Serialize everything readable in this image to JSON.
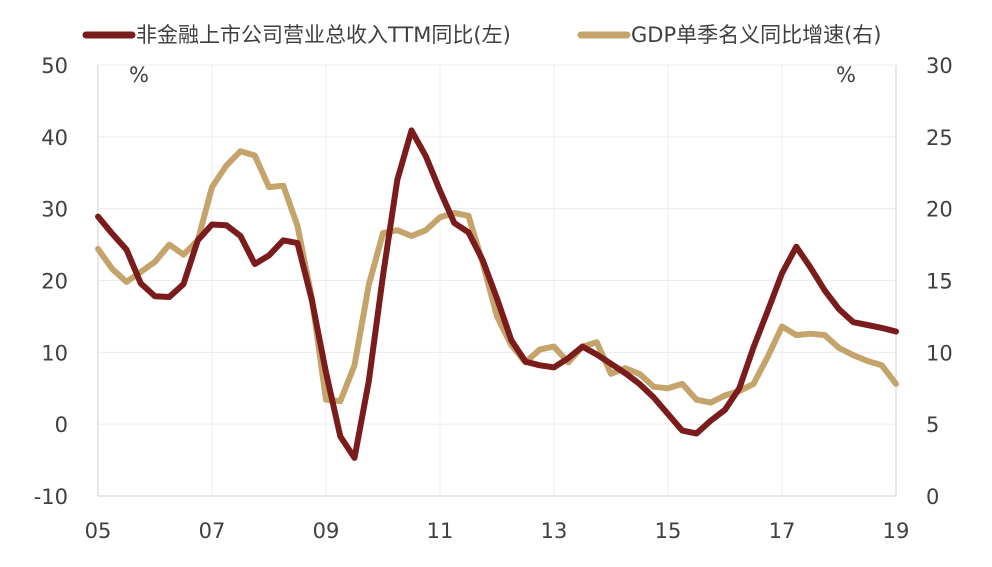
{
  "chart_data": {
    "type": "line",
    "title": "",
    "legend": {
      "placement": "top",
      "entries": [
        {
          "label": "非金融上市公司营业总收入TTM同比(左)",
          "color": "#7b1c1c"
        },
        {
          "label": "GDP单季名义同比增速(右)",
          "color": "#c4a46a"
        }
      ]
    },
    "x_axis": {
      "ticks": [
        "05",
        "07",
        "09",
        "11",
        "13",
        "15",
        "17",
        "19"
      ],
      "tick_values": [
        2005,
        2007,
        2009,
        2011,
        2013,
        2015,
        2017,
        2019
      ],
      "range": [
        2005,
        2019
      ]
    },
    "y_left": {
      "unit": "%",
      "range": [
        -10,
        50
      ],
      "ticks": [
        "50",
        "40",
        "30",
        "20",
        "10",
        "0",
        "-10"
      ],
      "tick_values": [
        50,
        40,
        30,
        20,
        10,
        0,
        -10
      ]
    },
    "y_right": {
      "unit": "%",
      "range": [
        0,
        30
      ],
      "ticks": [
        "30",
        "25",
        "20",
        "15",
        "10",
        "5",
        "0"
      ],
      "tick_values": [
        30,
        25,
        20,
        15,
        10,
        5,
        0
      ]
    },
    "grid": {
      "vertical": true,
      "horizontal": true
    },
    "series": [
      {
        "name": "非金融上市公司营业总收入TTM同比(左)",
        "axis": "left",
        "color": "#7b1c1c",
        "x": [
          2005.0,
          2005.25,
          2005.5,
          2005.75,
          2006.0,
          2006.25,
          2006.5,
          2006.75,
          2007.0,
          2007.25,
          2007.5,
          2007.75,
          2008.0,
          2008.25,
          2008.5,
          2008.75,
          2009.0,
          2009.25,
          2009.5,
          2009.75,
          2010.0,
          2010.25,
          2010.5,
          2010.75,
          2011.0,
          2011.25,
          2011.5,
          2011.75,
          2012.0,
          2012.25,
          2012.5,
          2012.75,
          2013.0,
          2013.25,
          2013.5,
          2013.75,
          2014.0,
          2014.25,
          2014.5,
          2014.75,
          2015.0,
          2015.25,
          2015.5,
          2015.75,
          2016.0,
          2016.25,
          2016.5,
          2016.75,
          2017.0,
          2017.25,
          2017.5,
          2017.75,
          2018.0,
          2018.25,
          2018.5,
          2018.75,
          2019.0
        ],
        "y": [
          28.9,
          26.5,
          24.3,
          19.6,
          17.8,
          17.7,
          19.5,
          25.6,
          27.8,
          27.7,
          26.2,
          22.3,
          23.5,
          25.6,
          25.2,
          17.3,
          7.2,
          -1.7,
          -4.7,
          6.0,
          20.7,
          34.0,
          40.9,
          37.3,
          32.5,
          28.0,
          26.7,
          22.8,
          17.5,
          11.7,
          8.7,
          8.2,
          7.9,
          9.2,
          10.8,
          9.7,
          8.4,
          7.1,
          5.6,
          3.7,
          1.4,
          -0.9,
          -1.3,
          0.5,
          2.0,
          5.0,
          10.7,
          15.8,
          21.0,
          24.7,
          21.8,
          18.6,
          16.0,
          14.2,
          13.8,
          13.4,
          12.9
        ]
      },
      {
        "name": "GDP单季名义同比增速(右)",
        "axis": "right",
        "color": "#c4a46a",
        "x": [
          2005.0,
          2005.25,
          2005.5,
          2005.75,
          2006.0,
          2006.25,
          2006.5,
          2006.75,
          2007.0,
          2007.25,
          2007.5,
          2007.75,
          2008.0,
          2008.25,
          2008.5,
          2008.75,
          2009.0,
          2009.25,
          2009.5,
          2009.75,
          2010.0,
          2010.25,
          2010.5,
          2010.75,
          2011.0,
          2011.25,
          2011.5,
          2011.75,
          2012.0,
          2012.25,
          2012.5,
          2012.75,
          2013.0,
          2013.25,
          2013.5,
          2013.75,
          2014.0,
          2014.25,
          2014.5,
          2014.75,
          2015.0,
          2015.25,
          2015.5,
          2015.75,
          2016.0,
          2016.25,
          2016.5,
          2016.75,
          2017.0,
          2017.25,
          2017.5,
          2017.75,
          2018.0,
          2018.25,
          2018.5,
          2018.75,
          2019.0
        ],
        "y": [
          17.2,
          15.8,
          14.9,
          15.6,
          16.3,
          17.5,
          16.8,
          17.8,
          21.5,
          23.0,
          24.0,
          23.7,
          21.5,
          21.6,
          18.8,
          13.8,
          6.7,
          6.6,
          9.1,
          14.7,
          18.3,
          18.5,
          18.1,
          18.5,
          19.4,
          19.7,
          19.5,
          16.2,
          12.5,
          10.5,
          9.3,
          10.2,
          10.4,
          9.3,
          10.4,
          10.7,
          8.5,
          8.9,
          8.5,
          7.6,
          7.5,
          7.8,
          6.7,
          6.5,
          7.0,
          7.3,
          7.8,
          9.7,
          11.8,
          11.2,
          11.3,
          11.2,
          10.3,
          9.8,
          9.4,
          9.1,
          7.8
        ]
      }
    ]
  }
}
